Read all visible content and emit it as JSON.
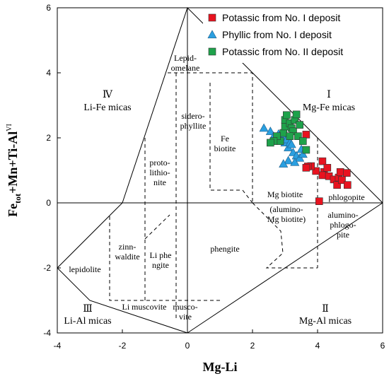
{
  "chart_data": {
    "type": "scatter",
    "xlabel": "Mg-Li",
    "ylabel_parts": {
      "a": "Fe",
      "sub": "tot",
      "b": "+Mn+Ti-Al",
      "sup": "VI"
    },
    "xlim": [
      -4,
      6
    ],
    "ylim": [
      -4,
      6
    ],
    "x_ticks": [
      "-4",
      "-2",
      "0",
      "2",
      "4",
      "6"
    ],
    "y_ticks": [
      "-4",
      "-2",
      "0",
      "2",
      "4",
      "6"
    ],
    "legend_position": "top-right",
    "grid": false,
    "series": [
      {
        "name": "Potassic from No. I deposit",
        "marker": "square",
        "color": "#e8131f",
        "points": [
          [
            3.65,
            2.1
          ],
          [
            4.15,
            1.28
          ],
          [
            4.2,
            0.95
          ],
          [
            4.3,
            1.08
          ],
          [
            4.15,
            0.85
          ],
          [
            3.95,
            0.98
          ],
          [
            3.8,
            1.13
          ],
          [
            3.7,
            1.12
          ],
          [
            3.65,
            1.08
          ],
          [
            4.35,
            0.82
          ],
          [
            4.5,
            0.72
          ],
          [
            4.6,
            0.55
          ],
          [
            4.65,
            0.78
          ],
          [
            4.7,
            0.95
          ],
          [
            4.75,
            0.7
          ],
          [
            4.9,
            0.92
          ],
          [
            4.92,
            0.55
          ],
          [
            4.05,
            0.05
          ]
        ]
      },
      {
        "name": "Phyllic from No. I deposit",
        "marker": "triangle",
        "color": "#2a9fe0",
        "points": [
          [
            2.35,
            2.3
          ],
          [
            2.55,
            2.2
          ],
          [
            2.6,
            1.95
          ],
          [
            2.65,
            2.05
          ],
          [
            2.75,
            1.9
          ],
          [
            2.8,
            2.12
          ],
          [
            2.85,
            1.98
          ],
          [
            2.95,
            2.02
          ],
          [
            3.0,
            1.85
          ],
          [
            3.05,
            1.95
          ],
          [
            3.1,
            1.7
          ],
          [
            3.15,
            1.85
          ],
          [
            3.2,
            1.8
          ],
          [
            3.25,
            1.55
          ],
          [
            3.35,
            1.45
          ],
          [
            3.45,
            1.38
          ],
          [
            3.5,
            1.65
          ],
          [
            3.1,
            1.3
          ],
          [
            3.3,
            1.25
          ],
          [
            3.55,
            1.5
          ],
          [
            2.95,
            1.2
          ]
        ]
      },
      {
        "name": "Potassic from No. II deposit",
        "marker": "square",
        "color": "#1ea24b",
        "points": [
          [
            2.85,
            1.9
          ],
          [
            2.95,
            2.15
          ],
          [
            3.0,
            2.35
          ],
          [
            3.0,
            2.55
          ],
          [
            3.05,
            2.7
          ],
          [
            3.15,
            2.45
          ],
          [
            3.2,
            2.3
          ],
          [
            3.25,
            2.2
          ],
          [
            3.3,
            2.55
          ],
          [
            3.35,
            2.72
          ],
          [
            3.4,
            2.05
          ],
          [
            3.45,
            2.4
          ],
          [
            3.55,
            1.9
          ],
          [
            3.65,
            1.63
          ],
          [
            3.15,
            2.05
          ],
          [
            2.75,
            2.05
          ],
          [
            2.65,
            1.9
          ],
          [
            2.55,
            1.85
          ]
        ]
      }
    ]
  },
  "regions": {
    "r1_numeral": "Ⅰ",
    "r1_name": "Mg-Fe micas",
    "r2_numeral": "Ⅱ",
    "r2_name": "Mg-Al micas",
    "r3_numeral": "Ⅲ",
    "r3_name": "Li-Al micas",
    "r4_numeral": "Ⅳ",
    "r4_name": "Li-Fe micas"
  },
  "fields": {
    "lepidomelane": [
      "Lepid-",
      "omelane"
    ],
    "siderophyllite": [
      "sidero-",
      "phyllite"
    ],
    "protolithionite": [
      "proto-",
      "lithio-",
      "nite"
    ],
    "fe_biotite": [
      "Fe",
      "biotite"
    ],
    "mg_biotite": "Mg biotite",
    "alumino_mg_biotite": [
      "(alumino-",
      "Mg biotite)"
    ],
    "phlogopite": "phlogopite",
    "alumino_phlogopite": [
      "alumino-",
      "phlogo-",
      "pite"
    ],
    "zinnwaldite": [
      "zinn-",
      "waldite"
    ],
    "li_phengite": [
      "Li phe",
      "ngite"
    ],
    "phengite": "phengite",
    "lepidolite": "lepidolite",
    "li_muscovite": "Li muscovite",
    "muscovite": [
      "musco-",
      "vite"
    ]
  }
}
